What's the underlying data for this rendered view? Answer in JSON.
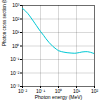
{
  "chart_data": {
    "type": "line",
    "xlabel": "Photon energy (MeV)",
    "ylabel": "Photon cross section (barn/atom)",
    "x": [
      0.01,
      0.012,
      0.015,
      0.02,
      0.025,
      0.03,
      0.04,
      0.05,
      0.06,
      0.08,
      0.1,
      0.15,
      0.2,
      0.3,
      0.5,
      0.8,
      1.0,
      1.5,
      2.0,
      3.0,
      5.0,
      8.0,
      10.0,
      15.0,
      20.0,
      30.0,
      40.0,
      50.0,
      60.0,
      80.0,
      100.0
    ],
    "values": [
      600,
      500,
      380,
      250,
      170,
      120,
      70,
      45,
      32,
      18,
      12,
      6.0,
      3.5,
      1.8,
      0.9,
      0.55,
      0.45,
      0.38,
      0.35,
      0.32,
      0.3,
      0.29,
      0.3,
      0.33,
      0.36,
      0.38,
      0.38,
      0.36,
      0.34,
      0.3,
      0.27
    ],
    "color": "#00c8d4",
    "log": true,
    "grid": true,
    "xlim": [
      0.01,
      100.0
    ],
    "ylim": [
      0.001,
      1000.0
    ],
    "xticks": [
      {
        "value": 0.01,
        "label": "10⁻²"
      },
      {
        "value": 0.1,
        "label": "10⁻¹"
      },
      {
        "value": 1,
        "label": "10⁰"
      },
      {
        "value": 10,
        "label": "10¹"
      },
      {
        "value": 100,
        "label": "10²"
      }
    ],
    "yticks": [
      {
        "value": 0.001,
        "label": "10⁻³"
      },
      {
        "value": 0.01,
        "label": "10⁻²"
      },
      {
        "value": 0.1,
        "label": "10⁻¹"
      },
      {
        "value": 1,
        "label": "10⁰"
      },
      {
        "value": 10,
        "label": "10¹"
      },
      {
        "value": 100,
        "label": "10²"
      },
      {
        "value": 1000,
        "label": "10³"
      }
    ]
  }
}
